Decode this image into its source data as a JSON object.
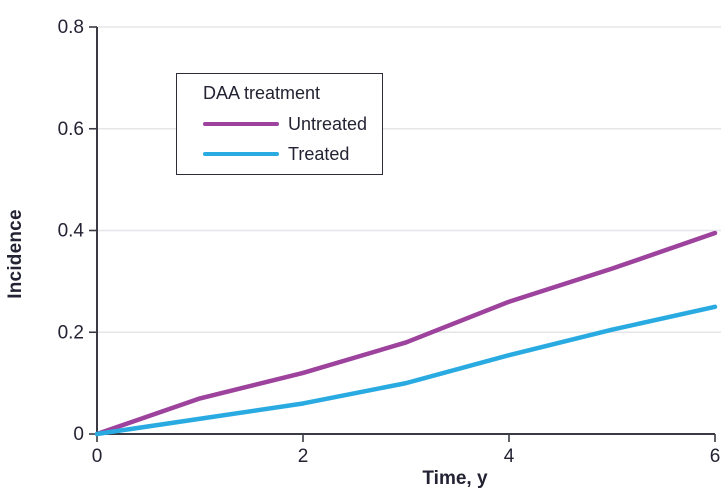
{
  "figure": {
    "kind": "survival-incidence line chart",
    "background": "#ffffff"
  },
  "chart_data": {
    "type": "line",
    "title": "",
    "xlabel": "Time, y",
    "ylabel": "Incidence",
    "x": [
      0,
      1,
      2,
      3,
      4,
      5,
      6
    ],
    "series": [
      {
        "name": "Untreated",
        "color": "#9d429d",
        "values": [
          0,
          0.07,
          0.12,
          0.18,
          0.26,
          0.325,
          0.395
        ]
      },
      {
        "name": "Treated",
        "color": "#29abe2",
        "values": [
          0,
          0.03,
          0.06,
          0.1,
          0.155,
          0.205,
          0.25
        ]
      }
    ],
    "xlim": [
      0,
      6
    ],
    "ylim": [
      0,
      0.8
    ],
    "xticks": [
      0,
      2,
      4,
      6
    ],
    "xtick_labels": [
      "0",
      "2",
      "4",
      "6"
    ],
    "yticks": [
      0,
      0.2,
      0.4,
      0.6,
      0.8
    ],
    "ytick_labels": [
      "0",
      "0.2",
      "0.4",
      "0.6",
      "0.8"
    ],
    "grid": "horizontal gridlines at y ticks",
    "legend": {
      "title": "DAA treatment",
      "position": "upper-left-inside",
      "entries": [
        "Untreated",
        "Treated"
      ]
    }
  },
  "colors": {
    "axis": "#3a3a44",
    "text": "#232334",
    "gridline": "#e6e6e9",
    "untreated": "#9d429d",
    "treated": "#29abe2"
  }
}
